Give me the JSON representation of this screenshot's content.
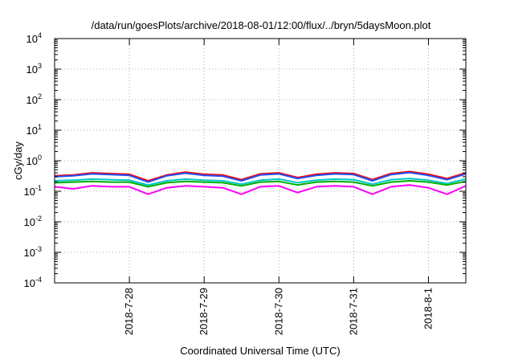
{
  "chart_data": {
    "type": "line",
    "title": "/data/run/goesPlots/archive/2018-08-01/12:00/flux/../bryn/5daysMoon.plot",
    "xlabel": "Coordinated Universal Time (UTC)",
    "ylabel": "cGy/day",
    "yscale": "log",
    "ylim": [
      0.0001,
      10000
    ],
    "y_ticks": [
      {
        "base": "10",
        "exp": "4",
        "value": 10000
      },
      {
        "base": "10",
        "exp": "3",
        "value": 1000
      },
      {
        "base": "10",
        "exp": "2",
        "value": 100
      },
      {
        "base": "10",
        "exp": "1",
        "value": 10
      },
      {
        "base": "10",
        "exp": "0",
        "value": 1
      },
      {
        "base": "10",
        "exp": "-1",
        "value": 0.1
      },
      {
        "base": "10",
        "exp": "-2",
        "value": 0.01
      },
      {
        "base": "10",
        "exp": "-3",
        "value": 0.001
      },
      {
        "base": "10",
        "exp": "-4",
        "value": 0.0001
      }
    ],
    "xlim": [
      "2018-07-27T00:00",
      "2018-08-01T12:00"
    ],
    "x_ticks": [
      {
        "label": "2018-7-28",
        "date": "2018-07-28T00:00"
      },
      {
        "label": "2018-7-29",
        "date": "2018-07-29T00:00"
      },
      {
        "label": "2018-7-30",
        "date": "2018-07-30T00:00"
      },
      {
        "label": "2018-7-31",
        "date": "2018-07-31T00:00"
      },
      {
        "label": "2018-8-1",
        "date": "2018-08-01T00:00"
      }
    ],
    "grid": true,
    "legend": "none",
    "series": [
      {
        "color": "#ff0000",
        "values": [
          {
            "x": "2018-07-27T00:00",
            "y": 0.32
          },
          {
            "x": "2018-07-27T06:00",
            "y": 0.34
          },
          {
            "x": "2018-07-27T12:00",
            "y": 0.4
          },
          {
            "x": "2018-07-27T18:00",
            "y": 0.38
          },
          {
            "x": "2018-07-28T00:00",
            "y": 0.36
          },
          {
            "x": "2018-07-28T06:00",
            "y": 0.22
          },
          {
            "x": "2018-07-28T12:00",
            "y": 0.34
          },
          {
            "x": "2018-07-28T18:00",
            "y": 0.42
          },
          {
            "x": "2018-07-29T00:00",
            "y": 0.36
          },
          {
            "x": "2018-07-29T06:00",
            "y": 0.34
          },
          {
            "x": "2018-07-29T12:00",
            "y": 0.24
          },
          {
            "x": "2018-07-29T18:00",
            "y": 0.37
          },
          {
            "x": "2018-07-30T00:00",
            "y": 0.4
          },
          {
            "x": "2018-07-30T06:00",
            "y": 0.28
          },
          {
            "x": "2018-07-30T12:00",
            "y": 0.36
          },
          {
            "x": "2018-07-30T18:00",
            "y": 0.4
          },
          {
            "x": "2018-07-31T00:00",
            "y": 0.38
          },
          {
            "x": "2018-07-31T06:00",
            "y": 0.24
          },
          {
            "x": "2018-07-31T12:00",
            "y": 0.38
          },
          {
            "x": "2018-07-31T18:00",
            "y": 0.44
          },
          {
            "x": "2018-08-01T00:00",
            "y": 0.36
          },
          {
            "x": "2018-08-01T06:00",
            "y": 0.26
          },
          {
            "x": "2018-08-01T12:00",
            "y": 0.4
          }
        ]
      },
      {
        "color": "#1f4fff",
        "values": [
          {
            "x": "2018-07-27T00:00",
            "y": 0.3
          },
          {
            "x": "2018-07-27T06:00",
            "y": 0.32
          },
          {
            "x": "2018-07-27T12:00",
            "y": 0.37
          },
          {
            "x": "2018-07-27T18:00",
            "y": 0.35
          },
          {
            "x": "2018-07-28T00:00",
            "y": 0.33
          },
          {
            "x": "2018-07-28T06:00",
            "y": 0.2
          },
          {
            "x": "2018-07-28T12:00",
            "y": 0.32
          },
          {
            "x": "2018-07-28T18:00",
            "y": 0.39
          },
          {
            "x": "2018-07-29T00:00",
            "y": 0.33
          },
          {
            "x": "2018-07-29T06:00",
            "y": 0.31
          },
          {
            "x": "2018-07-29T12:00",
            "y": 0.22
          },
          {
            "x": "2018-07-29T18:00",
            "y": 0.34
          },
          {
            "x": "2018-07-30T00:00",
            "y": 0.37
          },
          {
            "x": "2018-07-30T06:00",
            "y": 0.26
          },
          {
            "x": "2018-07-30T12:00",
            "y": 0.33
          },
          {
            "x": "2018-07-30T18:00",
            "y": 0.37
          },
          {
            "x": "2018-07-31T00:00",
            "y": 0.35
          },
          {
            "x": "2018-07-31T06:00",
            "y": 0.22
          },
          {
            "x": "2018-07-31T12:00",
            "y": 0.35
          },
          {
            "x": "2018-07-31T18:00",
            "y": 0.41
          },
          {
            "x": "2018-08-01T00:00",
            "y": 0.33
          },
          {
            "x": "2018-08-01T06:00",
            "y": 0.24
          },
          {
            "x": "2018-08-01T12:00",
            "y": 0.37
          }
        ]
      },
      {
        "color": "#00c8c8",
        "values": [
          {
            "x": "2018-07-27T00:00",
            "y": 0.22
          },
          {
            "x": "2018-07-27T06:00",
            "y": 0.23
          },
          {
            "x": "2018-07-27T12:00",
            "y": 0.25
          },
          {
            "x": "2018-07-27T18:00",
            "y": 0.24
          },
          {
            "x": "2018-07-28T00:00",
            "y": 0.23
          },
          {
            "x": "2018-07-28T06:00",
            "y": 0.16
          },
          {
            "x": "2018-07-28T12:00",
            "y": 0.22
          },
          {
            "x": "2018-07-28T18:00",
            "y": 0.25
          },
          {
            "x": "2018-07-29T00:00",
            "y": 0.23
          },
          {
            "x": "2018-07-29T06:00",
            "y": 0.22
          },
          {
            "x": "2018-07-29T12:00",
            "y": 0.17
          },
          {
            "x": "2018-07-29T18:00",
            "y": 0.23
          },
          {
            "x": "2018-07-30T00:00",
            "y": 0.25
          },
          {
            "x": "2018-07-30T06:00",
            "y": 0.19
          },
          {
            "x": "2018-07-30T12:00",
            "y": 0.23
          },
          {
            "x": "2018-07-30T18:00",
            "y": 0.25
          },
          {
            "x": "2018-07-31T00:00",
            "y": 0.24
          },
          {
            "x": "2018-07-31T06:00",
            "y": 0.17
          },
          {
            "x": "2018-07-31T12:00",
            "y": 0.24
          },
          {
            "x": "2018-07-31T18:00",
            "y": 0.26
          },
          {
            "x": "2018-08-01T00:00",
            "y": 0.23
          },
          {
            "x": "2018-08-01T06:00",
            "y": 0.18
          },
          {
            "x": "2018-08-01T12:00",
            "y": 0.25
          }
        ]
      },
      {
        "color": "#00b000",
        "values": [
          {
            "x": "2018-07-27T00:00",
            "y": 0.19
          },
          {
            "x": "2018-07-27T06:00",
            "y": 0.2
          },
          {
            "x": "2018-07-27T12:00",
            "y": 0.21
          },
          {
            "x": "2018-07-27T18:00",
            "y": 0.2
          },
          {
            "x": "2018-07-28T00:00",
            "y": 0.2
          },
          {
            "x": "2018-07-28T06:00",
            "y": 0.14
          },
          {
            "x": "2018-07-28T12:00",
            "y": 0.19
          },
          {
            "x": "2018-07-28T18:00",
            "y": 0.21
          },
          {
            "x": "2018-07-29T00:00",
            "y": 0.2
          },
          {
            "x": "2018-07-29T06:00",
            "y": 0.19
          },
          {
            "x": "2018-07-29T12:00",
            "y": 0.15
          },
          {
            "x": "2018-07-29T18:00",
            "y": 0.2
          },
          {
            "x": "2018-07-30T00:00",
            "y": 0.21
          },
          {
            "x": "2018-07-30T06:00",
            "y": 0.16
          },
          {
            "x": "2018-07-30T12:00",
            "y": 0.2
          },
          {
            "x": "2018-07-30T18:00",
            "y": 0.21
          },
          {
            "x": "2018-07-31T00:00",
            "y": 0.2
          },
          {
            "x": "2018-07-31T06:00",
            "y": 0.15
          },
          {
            "x": "2018-07-31T12:00",
            "y": 0.2
          },
          {
            "x": "2018-07-31T18:00",
            "y": 0.22
          },
          {
            "x": "2018-08-01T00:00",
            "y": 0.2
          },
          {
            "x": "2018-08-01T06:00",
            "y": 0.16
          },
          {
            "x": "2018-08-01T12:00",
            "y": 0.21
          }
        ]
      },
      {
        "color": "#ff00ff",
        "values": [
          {
            "x": "2018-07-27T00:00",
            "y": 0.14
          },
          {
            "x": "2018-07-27T06:00",
            "y": 0.12
          },
          {
            "x": "2018-07-27T12:00",
            "y": 0.15
          },
          {
            "x": "2018-07-27T18:00",
            "y": 0.14
          },
          {
            "x": "2018-07-28T00:00",
            "y": 0.14
          },
          {
            "x": "2018-07-28T06:00",
            "y": 0.08
          },
          {
            "x": "2018-07-28T12:00",
            "y": 0.13
          },
          {
            "x": "2018-07-28T18:00",
            "y": 0.15
          },
          {
            "x": "2018-07-29T00:00",
            "y": 0.14
          },
          {
            "x": "2018-07-29T06:00",
            "y": 0.13
          },
          {
            "x": "2018-07-29T12:00",
            "y": 0.08
          },
          {
            "x": "2018-07-29T18:00",
            "y": 0.14
          },
          {
            "x": "2018-07-30T00:00",
            "y": 0.15
          },
          {
            "x": "2018-07-30T06:00",
            "y": 0.09
          },
          {
            "x": "2018-07-30T12:00",
            "y": 0.14
          },
          {
            "x": "2018-07-30T18:00",
            "y": 0.15
          },
          {
            "x": "2018-07-31T00:00",
            "y": 0.14
          },
          {
            "x": "2018-07-31T06:00",
            "y": 0.08
          },
          {
            "x": "2018-07-31T12:00",
            "y": 0.14
          },
          {
            "x": "2018-07-31T18:00",
            "y": 0.16
          },
          {
            "x": "2018-08-01T00:00",
            "y": 0.13
          },
          {
            "x": "2018-08-01T06:00",
            "y": 0.08
          },
          {
            "x": "2018-08-01T12:00",
            "y": 0.15
          }
        ]
      }
    ]
  }
}
